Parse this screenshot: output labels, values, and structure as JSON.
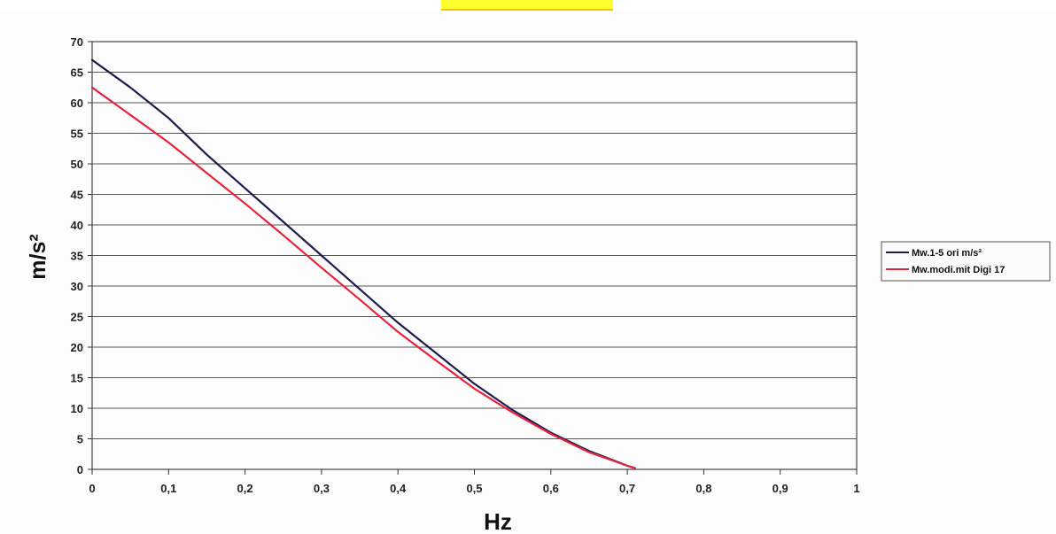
{
  "chart_data": {
    "type": "line",
    "title": "",
    "xlabel": "Hz",
    "ylabel": "m/s²",
    "xlim": [
      0,
      1
    ],
    "ylim": [
      0,
      70
    ],
    "x_ticks": [
      "0",
      "0,1",
      "0,2",
      "0,3",
      "0,4",
      "0,5",
      "0,6",
      "0,7",
      "0,8",
      "0,9",
      "1"
    ],
    "y_ticks": [
      "0",
      "5",
      "10",
      "15",
      "20",
      "25",
      "30",
      "35",
      "40",
      "45",
      "50",
      "55",
      "60",
      "65",
      "70"
    ],
    "grid": "horizontal",
    "legend_position": "right",
    "series": [
      {
        "name": "Mw.1-5 ori m/s²",
        "color": "#1c1c4e",
        "points": [
          [
            0,
            67
          ],
          [
            0.05,
            62.5
          ],
          [
            0.1,
            57.5
          ],
          [
            0.15,
            51.5
          ],
          [
            0.2,
            46
          ],
          [
            0.25,
            40.5
          ],
          [
            0.3,
            35
          ],
          [
            0.35,
            29.5
          ],
          [
            0.4,
            24
          ],
          [
            0.45,
            19
          ],
          [
            0.5,
            14
          ],
          [
            0.55,
            9.7
          ],
          [
            0.6,
            6
          ],
          [
            0.65,
            3
          ],
          [
            0.7,
            0.6
          ],
          [
            0.71,
            0.2
          ]
        ]
      },
      {
        "name": "Mw.modi.mit Digi 17",
        "color": "#e8233c",
        "points": [
          [
            0,
            62.5
          ],
          [
            0.05,
            58
          ],
          [
            0.1,
            53.5
          ],
          [
            0.15,
            48.5
          ],
          [
            0.2,
            43.5
          ],
          [
            0.25,
            38.3
          ],
          [
            0.3,
            33
          ],
          [
            0.35,
            27.8
          ],
          [
            0.4,
            22.5
          ],
          [
            0.45,
            17.8
          ],
          [
            0.5,
            13.2
          ],
          [
            0.55,
            9.3
          ],
          [
            0.6,
            5.8
          ],
          [
            0.65,
            2.8
          ],
          [
            0.7,
            0.6
          ],
          [
            0.71,
            0.2
          ]
        ]
      }
    ]
  }
}
